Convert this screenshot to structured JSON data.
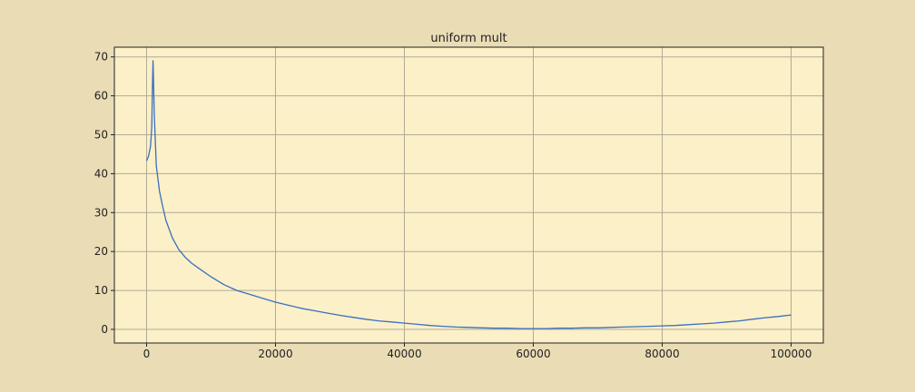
{
  "chart_data": {
    "type": "line",
    "title": "uniform mult",
    "xlabel": "",
    "ylabel": "",
    "xlim": [
      -5000,
      105000
    ],
    "ylim": [
      -3.5,
      72.5
    ],
    "xticks": [
      0,
      20000,
      40000,
      60000,
      80000,
      100000
    ],
    "xtick_labels": [
      "0",
      "20000",
      "40000",
      "60000",
      "80000",
      "100000"
    ],
    "yticks": [
      0,
      10,
      20,
      30,
      40,
      50,
      60,
      70
    ],
    "ytick_labels": [
      "0",
      "10",
      "20",
      "30",
      "40",
      "50",
      "60",
      "70"
    ],
    "grid": true,
    "legend": "none",
    "colors": {
      "figure_background": "#eadcb5",
      "plot_background": "#fbf0c8",
      "grid": "#b3aa96",
      "line": "#3a6fc1",
      "frame": "#222222"
    },
    "series": [
      {
        "x": [
          0,
          300,
          600,
          800,
          900,
          1000,
          1200,
          1500,
          2000,
          2500,
          3000,
          4000,
          5000,
          6000,
          7000,
          8000,
          10000,
          12000,
          14000,
          16000,
          18000,
          20000,
          22000,
          24000,
          26000,
          28000,
          30000,
          32000,
          34000,
          36000,
          38000,
          40000,
          42000,
          44000,
          46000,
          48000,
          50000,
          52000,
          54000,
          56000,
          58000,
          60000,
          62000,
          64000,
          66000,
          68000,
          70000,
          72000,
          74000,
          76000,
          78000,
          80000,
          82000,
          84000,
          86000,
          88000,
          90000,
          92000,
          94000,
          96000,
          98000,
          100000
        ],
        "y": [
          43.3,
          44.5,
          47,
          52,
          62,
          69,
          55,
          42,
          35.5,
          31.5,
          28,
          23.5,
          20.5,
          18.5,
          17,
          15.8,
          13.5,
          11.5,
          10,
          9,
          8,
          7,
          6.2,
          5.4,
          4.8,
          4.2,
          3.6,
          3.1,
          2.6,
          2.2,
          1.9,
          1.6,
          1.3,
          1.0,
          0.8,
          0.6,
          0.5,
          0.4,
          0.3,
          0.3,
          0.2,
          0.2,
          0.2,
          0.3,
          0.3,
          0.4,
          0.4,
          0.5,
          0.6,
          0.7,
          0.8,
          0.9,
          1.0,
          1.2,
          1.4,
          1.6,
          1.9,
          2.2,
          2.6,
          3.0,
          3.3,
          3.7
        ]
      }
    ]
  }
}
